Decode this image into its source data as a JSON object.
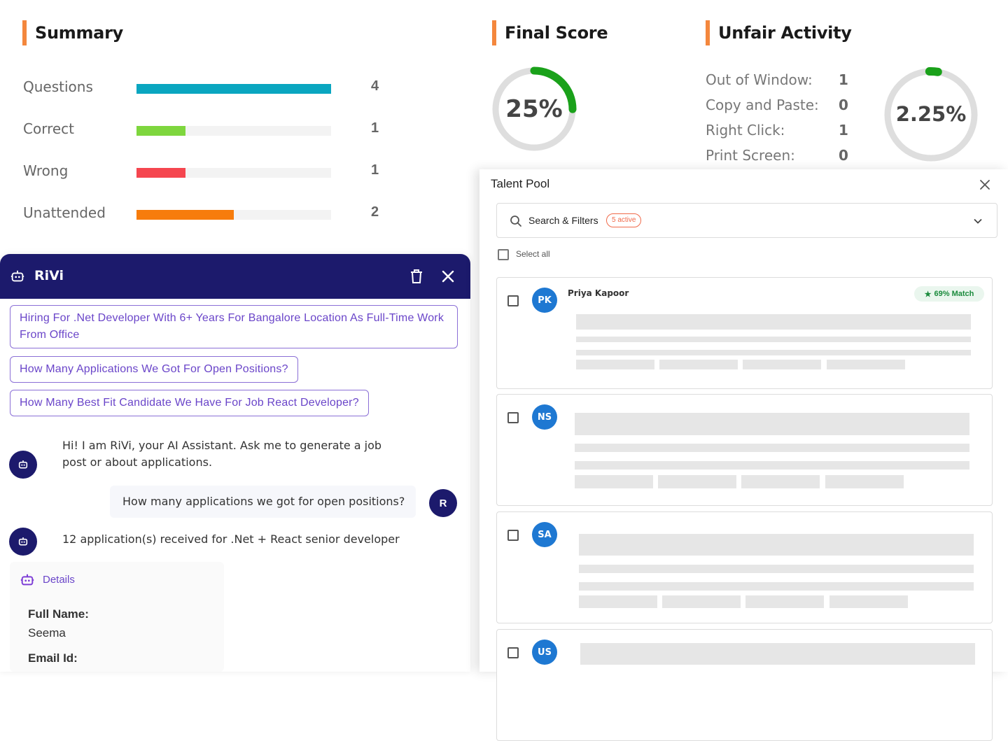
{
  "summary": {
    "title": "Summary",
    "rows": [
      {
        "label": "Questions",
        "value": "4",
        "fraction": 1.0,
        "color": "#0aa6c0"
      },
      {
        "label": "Correct",
        "value": "1",
        "fraction": 0.25,
        "color": "#7ed63e"
      },
      {
        "label": "Wrong",
        "value": "1",
        "fraction": 0.25,
        "color": "#f5464f"
      },
      {
        "label": "Unattended",
        "value": "2",
        "fraction": 0.5,
        "color": "#f77c0c"
      }
    ]
  },
  "final_score": {
    "title": "Final Score",
    "value": "25%",
    "fraction": 0.25,
    "color": "#1aa11a"
  },
  "unfair_activity": {
    "title": "Unfair Activity",
    "rows": [
      {
        "label": "Out of Window:",
        "value": "1"
      },
      {
        "label": "Copy and Paste:",
        "value": "0"
      },
      {
        "label": "Right Click:",
        "value": "1"
      },
      {
        "label": "Print Screen:",
        "value": "0"
      }
    ],
    "value": "2.25%",
    "fraction": 0.0225
  },
  "chat": {
    "title": "RiVi",
    "suggestions": [
      "Hiring For .Net Developer With 6+ Years For Bangalore Location As Full-Time Work From Office",
      "How Many Applications We Got For Open Positions?",
      "How Many Best Fit Candidate We Have For Job React Developer?"
    ],
    "bot_greeting": "Hi! I am RiVi, your AI Assistant. Ask me to generate a job post or about applications.",
    "user_message": "How many applications we got for open positions?",
    "user_initial": "R",
    "bot_reply": "12 application(s) received for .Net + React senior developer",
    "details_label": "Details",
    "full_name_label": "Full Name:",
    "full_name": "Seema",
    "email_label": "Email Id:"
  },
  "talent_pool": {
    "title": "Talent Pool",
    "search_label": "Search & Filters",
    "active_badge": "5 active",
    "select_all": "Select all",
    "candidates": [
      {
        "initials": "PK",
        "name": "Priya Kapoor",
        "match": "69% Match"
      },
      {
        "initials": "NS",
        "name": "",
        "match": ""
      },
      {
        "initials": "SA",
        "name": "",
        "match": ""
      },
      {
        "initials": "US",
        "name": "",
        "match": ""
      }
    ]
  }
}
